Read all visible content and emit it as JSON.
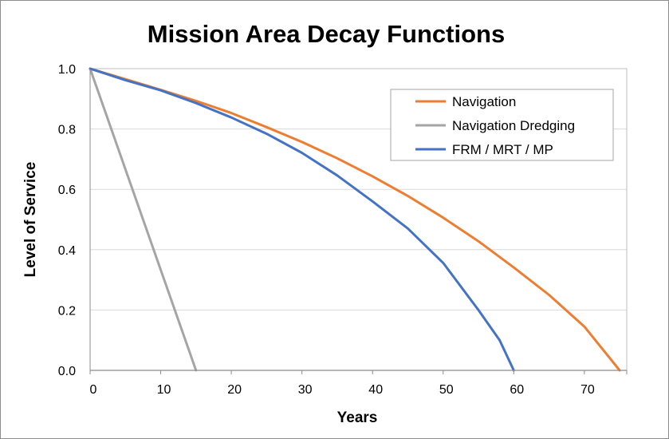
{
  "chart_data": {
    "type": "line",
    "title": "Mission Area Decay Functions",
    "xlabel": "Years",
    "ylabel": "Level of Service",
    "xlim": [
      0,
      76
    ],
    "ylim": [
      0,
      1
    ],
    "x_ticks": [
      0,
      10,
      20,
      30,
      40,
      50,
      60,
      70
    ],
    "y_ticks": [
      "0.0",
      "0.2",
      "0.4",
      "0.6",
      "0.8",
      "1.0"
    ],
    "grid": "horizontal",
    "legend_position": "top-right",
    "series": [
      {
        "name": "Navigation",
        "color": "#ED7D31",
        "x": [
          0,
          5,
          10,
          15,
          20,
          25,
          30,
          35,
          40,
          45,
          50,
          55,
          60,
          65,
          70,
          75
        ],
        "y": [
          1.0,
          0.965,
          0.93,
          0.893,
          0.853,
          0.806,
          0.757,
          0.703,
          0.643,
          0.578,
          0.506,
          0.428,
          0.341,
          0.25,
          0.145,
          0.0
        ]
      },
      {
        "name": "Navigation Dredging",
        "color": "#A5A5A5",
        "x": [
          0,
          15
        ],
        "y": [
          1.0,
          0.0
        ]
      },
      {
        "name": "FRM / MRT / MP",
        "color": "#4472C4",
        "x": [
          0,
          5,
          10,
          15,
          20,
          25,
          30,
          35,
          40,
          45,
          50,
          55,
          58,
          60
        ],
        "y": [
          1.0,
          0.962,
          0.928,
          0.886,
          0.838,
          0.784,
          0.721,
          0.646,
          0.56,
          0.47,
          0.356,
          0.2,
          0.1,
          0.0
        ]
      }
    ]
  }
}
